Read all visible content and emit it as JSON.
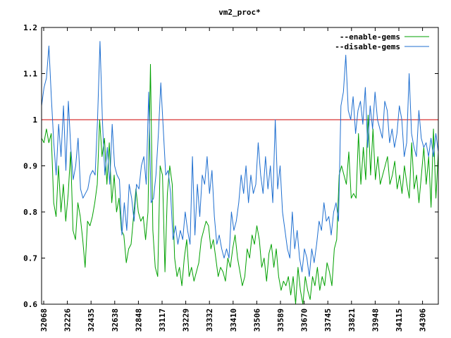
{
  "chart_data": {
    "type": "line",
    "title": "vm2_proc*",
    "xlabel": "",
    "ylabel": "",
    "ylim": [
      0.6,
      1.2
    ],
    "yticks": [
      "0.6",
      "0.7",
      "0.8",
      "0.9",
      "1",
      "1.1",
      "1.2"
    ],
    "xticks": [
      "32068",
      "32226",
      "32435",
      "32638",
      "32848",
      "33117",
      "33229",
      "33332",
      "33410",
      "33506",
      "33589",
      "33670",
      "33745",
      "33821",
      "33948",
      "34115",
      "34306"
    ],
    "reference_line": {
      "y": 1.0,
      "color": "#cc0000"
    },
    "legend_position": "top-right",
    "series": [
      {
        "name": "--enable-gems",
        "color": "#00a000",
        "values": [
          0.96,
          0.95,
          0.98,
          0.95,
          0.97,
          0.82,
          0.79,
          0.9,
          0.8,
          0.86,
          0.78,
          0.84,
          0.93,
          0.76,
          0.74,
          0.82,
          0.79,
          0.74,
          0.68,
          0.78,
          0.77,
          0.79,
          0.82,
          0.86,
          1.0,
          0.92,
          0.96,
          0.86,
          0.95,
          0.82,
          0.88,
          0.8,
          0.83,
          0.76,
          0.75,
          0.69,
          0.72,
          0.73,
          0.79,
          0.85,
          0.8,
          0.78,
          0.79,
          0.74,
          0.8,
          1.12,
          0.76,
          0.68,
          0.66,
          0.9,
          0.88,
          0.67,
          0.84,
          0.9,
          0.86,
          0.7,
          0.66,
          0.68,
          0.64,
          0.7,
          0.74,
          0.66,
          0.68,
          0.65,
          0.67,
          0.69,
          0.74,
          0.76,
          0.78,
          0.77,
          0.72,
          0.74,
          0.7,
          0.66,
          0.68,
          0.67,
          0.65,
          0.7,
          0.68,
          0.72,
          0.75,
          0.7,
          0.67,
          0.64,
          0.66,
          0.72,
          0.7,
          0.75,
          0.73,
          0.77,
          0.74,
          0.68,
          0.7,
          0.65,
          0.71,
          0.73,
          0.68,
          0.72,
          0.66,
          0.63,
          0.65,
          0.64,
          0.66,
          0.62,
          0.66,
          0.6,
          0.68,
          0.63,
          0.6,
          0.66,
          0.63,
          0.61,
          0.66,
          0.64,
          0.68,
          0.63,
          0.66,
          0.64,
          0.69,
          0.67,
          0.64,
          0.72,
          0.74,
          0.88,
          0.9,
          0.88,
          0.86,
          0.93,
          0.83,
          0.84,
          0.83,
          0.97,
          0.86,
          0.94,
          0.87,
          1.01,
          0.88,
          0.98,
          0.87,
          0.92,
          0.86,
          0.88,
          0.9,
          0.92,
          0.86,
          0.88,
          0.91,
          0.85,
          0.88,
          0.84,
          0.9,
          0.86,
          0.83,
          0.95,
          0.85,
          0.88,
          0.82,
          0.88,
          0.94,
          0.86,
          0.92,
          0.81,
          0.98,
          0.83,
          0.93
        ]
      },
      {
        "name": "--disable-gems",
        "color": "#1f6fd0",
        "values": [
          1.03,
          1.07,
          1.09,
          1.16,
          1.05,
          0.95,
          0.88,
          0.99,
          0.92,
          1.03,
          0.89,
          1.04,
          0.94,
          0.87,
          0.9,
          0.96,
          0.85,
          0.83,
          0.84,
          0.85,
          0.88,
          0.89,
          0.88,
          1.0,
          1.17,
          1.0,
          0.88,
          0.94,
          0.86,
          0.99,
          0.9,
          0.88,
          0.87,
          0.75,
          0.82,
          0.76,
          0.86,
          0.83,
          0.78,
          0.86,
          0.85,
          0.9,
          0.92,
          0.86,
          1.06,
          0.82,
          0.83,
          0.88,
          0.97,
          1.08,
          0.98,
          0.88,
          0.89,
          0.84,
          0.74,
          0.77,
          0.73,
          0.76,
          0.74,
          0.8,
          0.76,
          0.73,
          0.92,
          0.75,
          0.86,
          0.79,
          0.88,
          0.86,
          0.92,
          0.84,
          0.89,
          0.79,
          0.73,
          0.75,
          0.72,
          0.7,
          0.72,
          0.7,
          0.8,
          0.76,
          0.78,
          0.82,
          0.88,
          0.84,
          0.9,
          0.82,
          0.88,
          0.84,
          0.86,
          0.95,
          0.88,
          0.84,
          0.92,
          0.85,
          0.9,
          0.82,
          1.0,
          0.85,
          0.9,
          0.8,
          0.76,
          0.72,
          0.7,
          0.8,
          0.72,
          0.76,
          0.7,
          0.67,
          0.72,
          0.7,
          0.66,
          0.72,
          0.69,
          0.73,
          0.78,
          0.76,
          0.82,
          0.78,
          0.79,
          0.75,
          0.8,
          0.82,
          0.78,
          1.03,
          1.06,
          1.14,
          1.02,
          1.0,
          1.05,
          0.97,
          1.02,
          1.04,
          0.99,
          1.07,
          0.94,
          1.03,
          0.98,
          1.06,
          1.0,
          0.98,
          0.96,
          1.04,
          1.02,
          0.95,
          0.98,
          0.94,
          0.97,
          1.03,
          1.0,
          0.92,
          0.95,
          1.1,
          0.97,
          0.94,
          0.92,
          1.02,
          0.96,
          0.94,
          0.95,
          0.92,
          0.96,
          0.92,
          0.97,
          0.93
        ]
      }
    ]
  }
}
